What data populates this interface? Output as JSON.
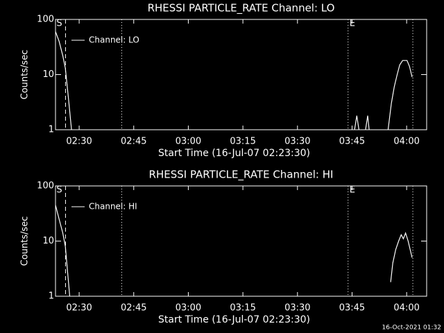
{
  "chart_data": [
    {
      "type": "line",
      "log_y": true,
      "title": "RHESSI PARTICLE_RATE Channel: LO",
      "xlabel": "Start Time (16-Jul-07 02:23:30)",
      "ylabel": "Counts/sec",
      "xlim": [
        0,
        102
      ],
      "ylim": [
        1,
        100
      ],
      "xticks": [
        {
          "value": 6.5,
          "label": "02:30"
        },
        {
          "value": 21.5,
          "label": "02:45"
        },
        {
          "value": 36.5,
          "label": "03:00"
        },
        {
          "value": 51.5,
          "label": "03:15"
        },
        {
          "value": 66.5,
          "label": "03:30"
        },
        {
          "value": 81.5,
          "label": "03:45"
        },
        {
          "value": 96.5,
          "label": "04:00"
        }
      ],
      "yticks": [
        1,
        10,
        100
      ],
      "vlines": [
        {
          "x": 2.75,
          "style": "dashed",
          "label": "S"
        },
        {
          "x": 18.2,
          "style": "dotted"
        },
        {
          "x": 80.4,
          "style": "dotted",
          "label": "E"
        },
        {
          "x": 98.2,
          "style": "dotted"
        }
      ],
      "x": [
        0,
        1,
        2,
        2.7,
        3.5,
        4.4,
        null,
        82.2,
        82.8,
        83.4,
        null,
        85.2,
        85.8,
        86.2,
        null,
        91.4,
        92.3,
        93.1,
        93.9,
        94.6,
        95.4,
        96.6,
        97.3,
        98
      ],
      "series": [
        {
          "name": "Channel: LO",
          "color": "#ffffff",
          "values": [
            60,
            40,
            22,
            13,
            4,
            1,
            null,
            1,
            1.8,
            1,
            null,
            1,
            1.8,
            1,
            null,
            1,
            3,
            6,
            10,
            15,
            18,
            18,
            14,
            9
          ]
        }
      ]
    },
    {
      "type": "line",
      "log_y": true,
      "title": "RHESSI PARTICLE_RATE Channel: HI",
      "xlabel": "Start Time (16-Jul-07 02:23:30)",
      "ylabel": "Counts/sec",
      "xlim": [
        0,
        102
      ],
      "ylim": [
        1,
        100
      ],
      "xticks": [
        {
          "value": 6.5,
          "label": "02:30"
        },
        {
          "value": 21.5,
          "label": "02:45"
        },
        {
          "value": 36.5,
          "label": "03:00"
        },
        {
          "value": 51.5,
          "label": "03:15"
        },
        {
          "value": 66.5,
          "label": "03:30"
        },
        {
          "value": 81.5,
          "label": "03:45"
        },
        {
          "value": 96.5,
          "label": "04:00"
        }
      ],
      "yticks": [
        1,
        10,
        100
      ],
      "vlines": [
        {
          "x": 2.75,
          "style": "dashed",
          "label": "S"
        },
        {
          "x": 18.2,
          "style": "dotted"
        },
        {
          "x": 80.4,
          "style": "dotted",
          "label": "E"
        },
        {
          "x": 98.2,
          "style": "dotted"
        }
      ],
      "x": [
        0,
        1,
        2,
        2.7,
        3.5,
        3.9,
        null,
        92.1,
        92.7,
        93.5,
        94.3,
        95.0,
        95.6,
        96.2,
        96.9,
        98
      ],
      "series": [
        {
          "name": "Channel: HI",
          "color": "#ffffff",
          "values": [
            45,
            25,
            14,
            8,
            2,
            1,
            null,
            1.8,
            4,
            7,
            10,
            13,
            11,
            14,
            10,
            5
          ]
        }
      ]
    }
  ],
  "footer": "16-Oct-2021 01:32"
}
